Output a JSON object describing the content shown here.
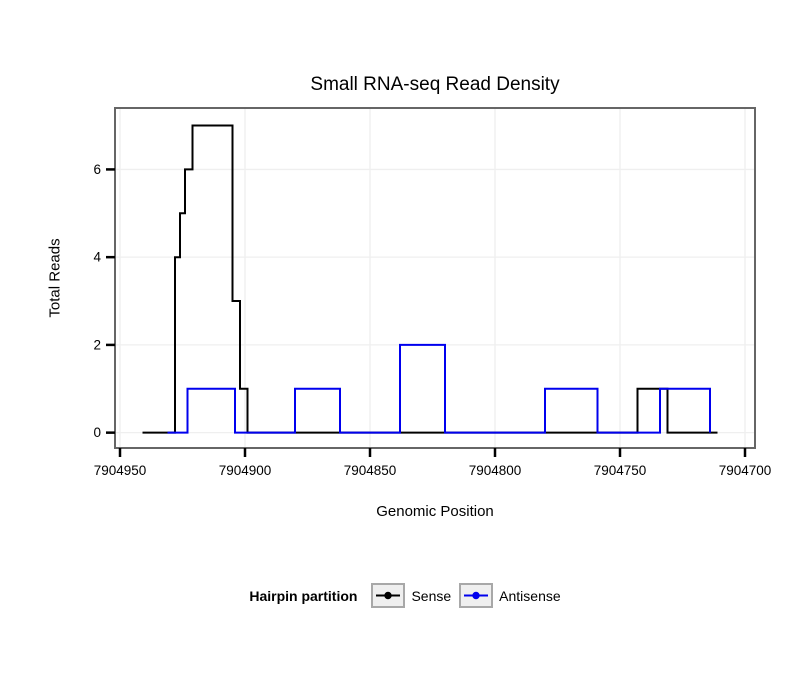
{
  "title": "Small RNA-seq Read Density",
  "axes": {
    "x": {
      "label": "Genomic Position",
      "reversed": true,
      "range": [
        7904952,
        7904696
      ],
      "ticks": [
        7904950,
        7904900,
        7904850,
        7904800,
        7904750,
        7904700
      ],
      "tick_labels": [
        "7904950",
        "7904900",
        "7904850",
        "7904800",
        "7904750",
        "7904700"
      ]
    },
    "y": {
      "label": "Total Reads",
      "range": [
        -0.35,
        7.4
      ],
      "ticks": [
        0,
        2,
        4,
        6
      ],
      "tick_labels": [
        "0",
        "2",
        "4",
        "6"
      ]
    }
  },
  "legend": {
    "title": "Hairpin partition",
    "entries": [
      {
        "label": "Sense",
        "color": "#000000"
      },
      {
        "label": "Antisense",
        "color": "#0000EE"
      }
    ]
  },
  "style": {
    "grid_color": "#EFEFEF",
    "panel_border_color": "#666666",
    "panel_fill": "#FFFFFF",
    "tick_color": "#000000",
    "line_width": 2
  },
  "chart_data": {
    "type": "line",
    "subtype": "step-density",
    "title": "Small RNA-seq Read Density",
    "xlabel": "Genomic Position",
    "ylabel": "Total Reads",
    "x_reversed": true,
    "xlim": [
      7904952,
      7904696
    ],
    "ylim": [
      -0.35,
      7.4
    ],
    "grid": true,
    "legend_position": "bottom",
    "series": [
      {
        "name": "Sense",
        "color": "#000000",
        "points": [
          [
            7904941,
            0
          ],
          [
            7904928,
            0
          ],
          [
            7904928,
            4
          ],
          [
            7904926,
            4
          ],
          [
            7904926,
            5
          ],
          [
            7904924,
            5
          ],
          [
            7904924,
            6
          ],
          [
            7904921,
            6
          ],
          [
            7904921,
            7
          ],
          [
            7904905,
            7
          ],
          [
            7904905,
            3
          ],
          [
            7904902,
            3
          ],
          [
            7904902,
            1
          ],
          [
            7904899,
            1
          ],
          [
            7904899,
            0
          ],
          [
            7904743,
            0
          ],
          [
            7904743,
            1
          ],
          [
            7904731,
            1
          ],
          [
            7904731,
            0
          ],
          [
            7904711,
            0
          ]
        ]
      },
      {
        "name": "Antisense",
        "color": "#0000EE",
        "points": [
          [
            7904931,
            0
          ],
          [
            7904923,
            0
          ],
          [
            7904923,
            1
          ],
          [
            7904904,
            1
          ],
          [
            7904904,
            0
          ],
          [
            7904880,
            0
          ],
          [
            7904880,
            1
          ],
          [
            7904862,
            1
          ],
          [
            7904862,
            0
          ],
          [
            7904838,
            0
          ],
          [
            7904838,
            2
          ],
          [
            7904820,
            2
          ],
          [
            7904820,
            0
          ],
          [
            7904780,
            0
          ],
          [
            7904780,
            1
          ],
          [
            7904759,
            1
          ],
          [
            7904759,
            0
          ],
          [
            7904734,
            0
          ],
          [
            7904734,
            1
          ],
          [
            7904714,
            1
          ],
          [
            7904714,
            0
          ]
        ]
      }
    ]
  }
}
